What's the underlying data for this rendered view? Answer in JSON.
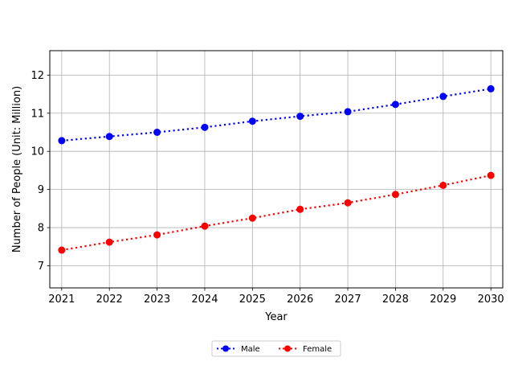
{
  "chart_data": {
    "type": "line",
    "title": "",
    "xlabel": "Year",
    "ylabel": "Number of People (Unit: Million)",
    "x": [
      2021,
      2022,
      2023,
      2024,
      2025,
      2026,
      2027,
      2028,
      2029,
      2030
    ],
    "x_tick_labels": [
      "2021",
      "2022",
      "2023",
      "2024",
      "2025",
      "2026",
      "2027",
      "2028",
      "2029",
      "2030"
    ],
    "y_ticks": [
      7,
      8,
      9,
      10,
      11,
      12
    ],
    "xlim": [
      2020.75,
      2030.25
    ],
    "ylim": [
      6.42,
      12.64
    ],
    "grid": true,
    "legend_position": "bottom-center",
    "series": [
      {
        "name": "Male",
        "color": "#0000ff",
        "line_style": "dotted",
        "marker": "circle",
        "values": [
          10.28,
          10.39,
          10.5,
          10.63,
          10.79,
          10.92,
          11.04,
          11.23,
          11.44,
          11.64
        ]
      },
      {
        "name": "Female",
        "color": "#ff0000",
        "line_style": "dotted",
        "marker": "circle",
        "values": [
          7.41,
          7.62,
          7.81,
          8.04,
          8.25,
          8.48,
          8.65,
          8.87,
          9.11,
          9.37
        ]
      }
    ]
  }
}
